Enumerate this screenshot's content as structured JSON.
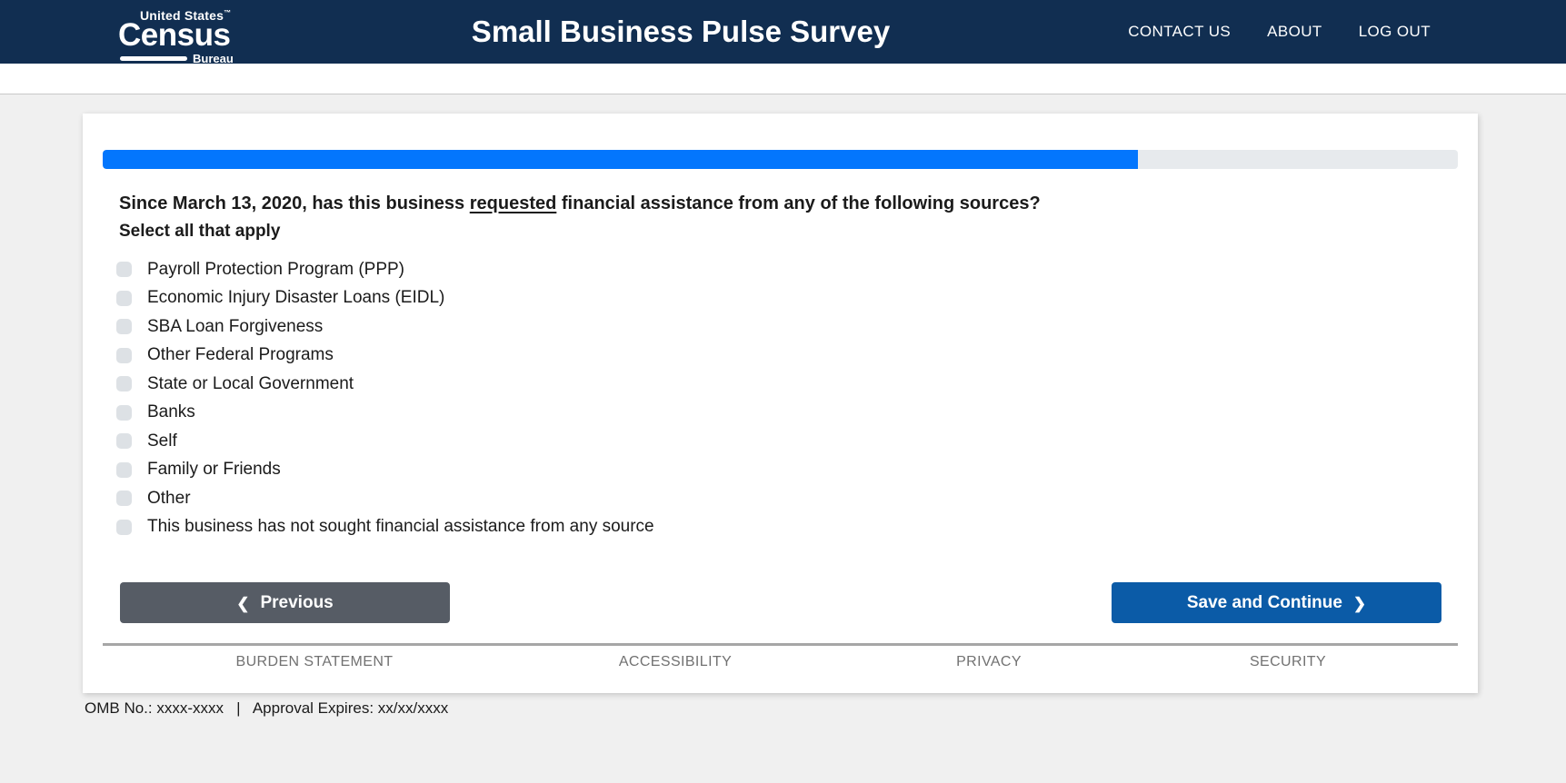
{
  "header": {
    "logo": {
      "united_states": "United States",
      "tm": "™",
      "census": "Census",
      "bureau": "Bureau"
    },
    "title": "Small Business Pulse Survey",
    "nav": [
      {
        "label": "CONTACT US"
      },
      {
        "label": "ABOUT"
      },
      {
        "label": "LOG OUT"
      }
    ]
  },
  "progress": {
    "percent": 76.4,
    "fill_color": "#0376fd",
    "track_color": "#e7eaed"
  },
  "question": {
    "prefix": "Since March 13, 2020, has this business ",
    "underlined": "requested",
    "suffix": " financial assistance from any of the following sources?",
    "instruction": "Select all that apply"
  },
  "checkboxes": [
    {
      "label": "Payroll Protection Program (PPP)",
      "checked": false
    },
    {
      "label": "Economic Injury Disaster Loans (EIDL)",
      "checked": false
    },
    {
      "label": "SBA Loan Forgiveness",
      "checked": false
    },
    {
      "label": "Other Federal Programs",
      "checked": false
    },
    {
      "label": "State or Local Government",
      "checked": false
    },
    {
      "label": "Banks",
      "checked": false
    },
    {
      "label": "Self",
      "checked": false
    },
    {
      "label": "Family or Friends",
      "checked": false
    },
    {
      "label": "Other",
      "checked": false
    },
    {
      "label": "This business has not sought financial assistance from any source",
      "checked": false
    }
  ],
  "buttons": {
    "previous_label": "Previous",
    "save_label": "Save and Continue",
    "previous_color": "#565c65",
    "save_color": "#0b5ba7"
  },
  "icons": {
    "chevron_left": "❮",
    "chevron_right": "❯"
  },
  "footer": {
    "links": [
      {
        "label": "BURDEN STATEMENT"
      },
      {
        "label": "ACCESSIBILITY"
      },
      {
        "label": "PRIVACY"
      },
      {
        "label": "SECURITY"
      }
    ]
  },
  "omb": {
    "text": "OMB No.: xxxx-xxxx   |   Approval Expires: xx/xx/xxxx"
  },
  "colors": {
    "header_bg": "#112e51",
    "page_bg": "#f0f0f0",
    "card_bg": "#ffffff",
    "checkbox_bg": "#dde1e5"
  }
}
